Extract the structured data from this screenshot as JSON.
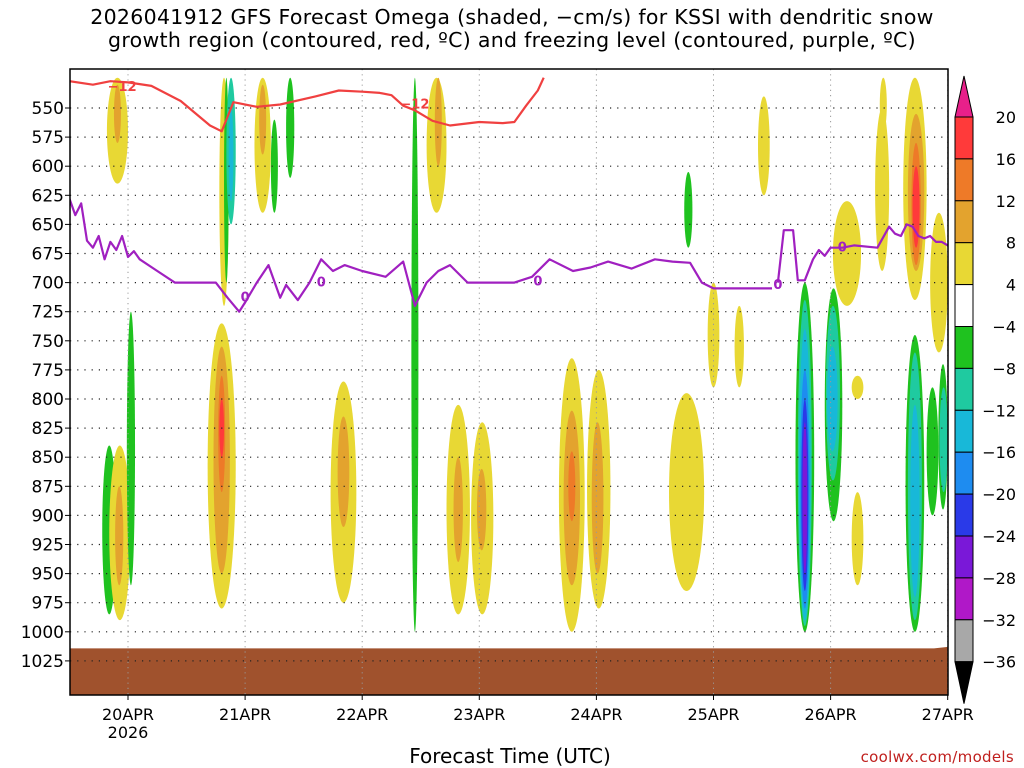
{
  "header": {
    "title_line1": "2026041912 GFS Forecast Omega (shaded, −cm/s) for KSSI with dendritic snow",
    "title_line2": "growth region (contoured, red, ºC) and freezing level (contoured, purple, ºC)"
  },
  "footer": {
    "xlabel": "Forecast Time (UTC)",
    "credit": "coolwx.com/models"
  },
  "colors": {
    "dgz_contour": "#f04040",
    "freezing_contour": "#a020c0",
    "terrain": "#a0522d"
  },
  "chart_data": {
    "type": "heatmap",
    "title": "2026041912 GFS Forecast Omega (shaded, −cm/s) for KSSI with dendritic snow growth region (contoured, red, ºC) and freezing level (contoured, purple, ºC)",
    "xlabel": "Forecast Time (UTC)",
    "ylabel": "",
    "x_ticks": [
      {
        "day": 0,
        "label": "20APR",
        "sub": "2026"
      },
      {
        "day": 1,
        "label": "21APR",
        "sub": ""
      },
      {
        "day": 2,
        "label": "22APR",
        "sub": ""
      },
      {
        "day": 3,
        "label": "23APR",
        "sub": ""
      },
      {
        "day": 4,
        "label": "24APR",
        "sub": ""
      },
      {
        "day": 5,
        "label": "25APR",
        "sub": ""
      },
      {
        "day": 6,
        "label": "26APR",
        "sub": ""
      },
      {
        "day": 7,
        "label": "27APR",
        "sub": ""
      }
    ],
    "x_range_days": [
      -0.5,
      7.0
    ],
    "y_levels_hpa": [
      550,
      575,
      600,
      625,
      650,
      675,
      700,
      725,
      750,
      775,
      800,
      825,
      850,
      875,
      900,
      925,
      950,
      975,
      1000,
      1025
    ],
    "y_range_hpa": [
      524,
      1025
    ],
    "grid": true,
    "colorbar": {
      "labels": [
        "20",
        "16",
        "12",
        "8",
        "4",
        "−4",
        "−8",
        "−12",
        "−16",
        "−20",
        "−24",
        "−28",
        "−32",
        "−36"
      ],
      "bins": [
        {
          "range": "16 to 20",
          "color": "#ff3a3a"
        },
        {
          "range": "12 to 16",
          "color": "#ee7a28"
        },
        {
          "range": "8 to 12",
          "color": "#e3a32e"
        },
        {
          "range": "4 to 8",
          "color": "#e8d834"
        },
        {
          "range": "−4 to 4",
          "color": "#ffffff"
        },
        {
          "range": "−8 to −4",
          "color": "#1fc21f"
        },
        {
          "range": "−12 to −8",
          "color": "#1fcaa0"
        },
        {
          "range": "−16 to −12",
          "color": "#18b8d8"
        },
        {
          "range": "−20 to −16",
          "color": "#1e8cf0"
        },
        {
          "range": "−24 to −20",
          "color": "#2a3ae8"
        },
        {
          "range": "−28 to −24",
          "color": "#7a18d8"
        },
        {
          "range": "−32 to −28",
          "color": "#b018c8"
        },
        {
          "range": "−36 to −32",
          "color": "#a8a8a8"
        }
      ],
      "over_color": "#e8208a",
      "under_color": "#000000"
    },
    "features": [
      {
        "t0": -0.22,
        "t1": -0.1,
        "p0": 840,
        "p1": 985,
        "value": -6
      },
      {
        "t0": -0.16,
        "t1": 0.02,
        "p0": 840,
        "p1": 990,
        "value": 6
      },
      {
        "t0": -0.11,
        "t1": -0.04,
        "p0": 875,
        "p1": 960,
        "value": 10
      },
      {
        "t0": -0.01,
        "t1": 0.06,
        "p0": 725,
        "p1": 960,
        "value": -6
      },
      {
        "t0": -0.18,
        "t1": 0.0,
        "p0": 524,
        "p1": 615,
        "value": 6
      },
      {
        "t0": -0.12,
        "t1": -0.06,
        "p0": 530,
        "p1": 580,
        "value": 10
      },
      {
        "t0": 0.78,
        "t1": 0.86,
        "p0": 524,
        "p1": 720,
        "value": 6
      },
      {
        "t0": 0.82,
        "t1": 0.86,
        "p0": 524,
        "p1": 700,
        "value": -6
      },
      {
        "t0": 0.84,
        "t1": 0.92,
        "p0": 524,
        "p1": 650,
        "value": -10
      },
      {
        "t0": 0.86,
        "t1": 0.9,
        "p0": 550,
        "p1": 630,
        "value": -14
      },
      {
        "t0": 1.08,
        "t1": 1.22,
        "p0": 524,
        "p1": 640,
        "value": 6
      },
      {
        "t0": 1.12,
        "t1": 1.18,
        "p0": 530,
        "p1": 590,
        "value": 10
      },
      {
        "t0": 1.35,
        "t1": 1.42,
        "p0": 524,
        "p1": 610,
        "value": -6
      },
      {
        "t0": 1.22,
        "t1": 1.28,
        "p0": 560,
        "p1": 640,
        "value": -6
      },
      {
        "t0": 0.68,
        "t1": 0.92,
        "p0": 735,
        "p1": 980,
        "value": 6
      },
      {
        "t0": 0.73,
        "t1": 0.87,
        "p0": 755,
        "p1": 950,
        "value": 10
      },
      {
        "t0": 0.77,
        "t1": 0.83,
        "p0": 780,
        "p1": 880,
        "value": 14
      },
      {
        "t0": 0.78,
        "t1": 0.82,
        "p0": 800,
        "p1": 850,
        "value": 18
      },
      {
        "t0": 1.73,
        "t1": 1.95,
        "p0": 785,
        "p1": 975,
        "value": 6
      },
      {
        "t0": 1.79,
        "t1": 1.89,
        "p0": 815,
        "p1": 910,
        "value": 10
      },
      {
        "t0": 2.42,
        "t1": 2.48,
        "p0": 524,
        "p1": 1000,
        "value": -6
      },
      {
        "t0": 2.55,
        "t1": 2.72,
        "p0": 524,
        "p1": 640,
        "value": 6
      },
      {
        "t0": 2.62,
        "t1": 2.68,
        "p0": 524,
        "p1": 600,
        "value": 10
      },
      {
        "t0": 2.72,
        "t1": 2.92,
        "p0": 805,
        "p1": 985,
        "value": 6
      },
      {
        "t0": 2.78,
        "t1": 2.86,
        "p0": 850,
        "p1": 940,
        "value": 10
      },
      {
        "t0": 2.93,
        "t1": 3.12,
        "p0": 820,
        "p1": 985,
        "value": 6
      },
      {
        "t0": 2.98,
        "t1": 3.06,
        "p0": 860,
        "p1": 930,
        "value": 10
      },
      {
        "t0": 3.68,
        "t1": 3.9,
        "p0": 765,
        "p1": 1000,
        "value": 6
      },
      {
        "t0": 3.72,
        "t1": 3.86,
        "p0": 810,
        "p1": 960,
        "value": 10
      },
      {
        "t0": 3.76,
        "t1": 3.82,
        "p0": 845,
        "p1": 905,
        "value": 14
      },
      {
        "t0": 3.92,
        "t1": 4.12,
        "p0": 775,
        "p1": 980,
        "value": 6
      },
      {
        "t0": 3.96,
        "t1": 4.06,
        "p0": 820,
        "p1": 950,
        "value": 10
      },
      {
        "t0": 4.62,
        "t1": 4.92,
        "p0": 795,
        "p1": 965,
        "value": 6
      },
      {
        "t0": 4.95,
        "t1": 5.05,
        "p0": 700,
        "p1": 790,
        "value": 6
      },
      {
        "t0": 5.18,
        "t1": 5.26,
        "p0": 720,
        "p1": 790,
        "value": 6
      },
      {
        "t0": 4.75,
        "t1": 4.82,
        "p0": 605,
        "p1": 670,
        "value": -6
      },
      {
        "t0": 5.38,
        "t1": 5.48,
        "p0": 540,
        "p1": 625,
        "value": 6
      },
      {
        "t0": 5.7,
        "t1": 5.86,
        "p0": 700,
        "p1": 1000,
        "value": -6
      },
      {
        "t0": 5.72,
        "t1": 5.84,
        "p0": 715,
        "p1": 995,
        "value": -10
      },
      {
        "t0": 5.73,
        "t1": 5.83,
        "p0": 740,
        "p1": 990,
        "value": -14
      },
      {
        "t0": 5.74,
        "t1": 5.82,
        "p0": 775,
        "p1": 980,
        "value": -18
      },
      {
        "t0": 5.75,
        "t1": 5.81,
        "p0": 800,
        "p1": 965,
        "value": -22
      },
      {
        "t0": 5.76,
        "t1": 5.8,
        "p0": 820,
        "p1": 950,
        "value": -26
      },
      {
        "t0": 5.95,
        "t1": 6.1,
        "p0": 705,
        "p1": 905,
        "value": -6
      },
      {
        "t0": 5.96,
        "t1": 6.08,
        "p0": 720,
        "p1": 870,
        "value": -10
      },
      {
        "t0": 5.97,
        "t1": 6.06,
        "p0": 755,
        "p1": 845,
        "value": -14
      },
      {
        "t0": 6.02,
        "t1": 6.26,
        "p0": 630,
        "p1": 720,
        "value": 6
      },
      {
        "t0": 6.18,
        "t1": 6.28,
        "p0": 780,
        "p1": 800,
        "value": 6
      },
      {
        "t0": 6.18,
        "t1": 6.28,
        "p0": 880,
        "p1": 960,
        "value": 6
      },
      {
        "t0": 6.38,
        "t1": 6.5,
        "p0": 550,
        "p1": 690,
        "value": 6
      },
      {
        "t0": 6.42,
        "t1": 6.48,
        "p0": 524,
        "p1": 570,
        "value": 6
      },
      {
        "t0": 6.62,
        "t1": 6.82,
        "p0": 524,
        "p1": 715,
        "value": 6
      },
      {
        "t0": 6.66,
        "t1": 6.8,
        "p0": 555,
        "p1": 690,
        "value": 10
      },
      {
        "t0": 6.69,
        "t1": 6.77,
        "p0": 580,
        "p1": 685,
        "value": 14
      },
      {
        "t0": 6.7,
        "t1": 6.76,
        "p0": 600,
        "p1": 670,
        "value": 18
      },
      {
        "t0": 6.85,
        "t1": 7.0,
        "p0": 640,
        "p1": 760,
        "value": 6
      },
      {
        "t0": 6.64,
        "t1": 6.8,
        "p0": 745,
        "p1": 1000,
        "value": -6
      },
      {
        "t0": 6.66,
        "t1": 6.78,
        "p0": 760,
        "p1": 990,
        "value": -10
      },
      {
        "t0": 6.68,
        "t1": 6.76,
        "p0": 805,
        "p1": 970,
        "value": -14
      },
      {
        "t0": 6.82,
        "t1": 6.92,
        "p0": 790,
        "p1": 900,
        "value": -6
      },
      {
        "t0": 6.92,
        "t1": 7.0,
        "p0": 770,
        "p1": 895,
        "value": -6
      },
      {
        "t0": 6.93,
        "t1": 7.0,
        "p0": 790,
        "p1": 880,
        "value": -10
      }
    ],
    "dgz_contour": {
      "label": "−12",
      "segments": [
        {
          "t": [
            -0.5,
            -0.3,
            -0.15,
            0.0,
            0.2,
            0.45,
            0.7,
            0.8,
            0.9,
            0.95,
            1.1,
            1.3,
            1.6,
            1.8,
            2.0,
            2.15,
            2.25,
            2.35,
            2.45,
            2.6,
            2.75,
            3.0,
            3.2,
            3.3,
            3.4,
            3.5,
            3.55
          ],
          "p": [
            527,
            530,
            527,
            528,
            531,
            544,
            565,
            570,
            545,
            546,
            549,
            547,
            540,
            535,
            536,
            537,
            539,
            548,
            552,
            561,
            565,
            562,
            563,
            562,
            548,
            535,
            524
          ]
        }
      ],
      "label_points": [
        {
          "t": -0.05,
          "p": 532
        },
        {
          "t": 2.45,
          "p": 547
        }
      ]
    },
    "freezing_contour": {
      "label": "0",
      "segments": [
        {
          "t": [
            -0.5,
            -0.45,
            -0.4,
            -0.35,
            -0.3,
            -0.25,
            -0.2,
            -0.15,
            -0.1,
            -0.05,
            0.0,
            0.05,
            0.1,
            0.25,
            0.4,
            0.6,
            0.75,
            0.85,
            0.95,
            1.0,
            1.1,
            1.2,
            1.3,
            1.35,
            1.45,
            1.55,
            1.65,
            1.75,
            1.85,
            2.0,
            2.2,
            2.35,
            2.45,
            2.55,
            2.65,
            2.75,
            2.9,
            3.1,
            3.3,
            3.45,
            3.6,
            3.8,
            3.95,
            4.1,
            4.3,
            4.5,
            4.65,
            4.8,
            4.9,
            5.0,
            5.1,
            5.3,
            5.5
          ],
          "p": [
            628,
            642,
            632,
            664,
            670,
            660,
            680,
            665,
            672,
            660,
            678,
            673,
            680,
            690,
            700,
            700,
            700,
            713,
            725,
            717,
            700,
            685,
            713,
            702,
            715,
            700,
            680,
            690,
            685,
            690,
            695,
            682,
            720,
            700,
            690,
            685,
            700,
            700,
            700,
            695,
            680,
            690,
            687,
            682,
            688,
            680,
            682,
            683,
            700,
            705,
            705,
            705,
            705
          ]
        },
        {
          "t": [
            5.55,
            5.6,
            5.68,
            5.72,
            5.78,
            5.85,
            5.9,
            5.95,
            6.0,
            6.1,
            6.2,
            6.4,
            6.5,
            6.55,
            6.6,
            6.65,
            6.7,
            6.75,
            6.8,
            6.85,
            6.9,
            6.95,
            7.0
          ],
          "p": [
            700,
            655,
            655,
            698,
            698,
            680,
            672,
            677,
            670,
            670,
            668,
            670,
            652,
            658,
            660,
            650,
            652,
            660,
            662,
            660,
            665,
            665,
            668
          ]
        }
      ],
      "label_points": [
        {
          "t": 1.0,
          "p": 713
        },
        {
          "t": 1.65,
          "p": 700
        },
        {
          "t": 3.5,
          "p": 699
        },
        {
          "t": 5.55,
          "p": 702
        },
        {
          "t": 6.1,
          "p": 670
        }
      ]
    },
    "terrain_top_hpa": 1013
  }
}
